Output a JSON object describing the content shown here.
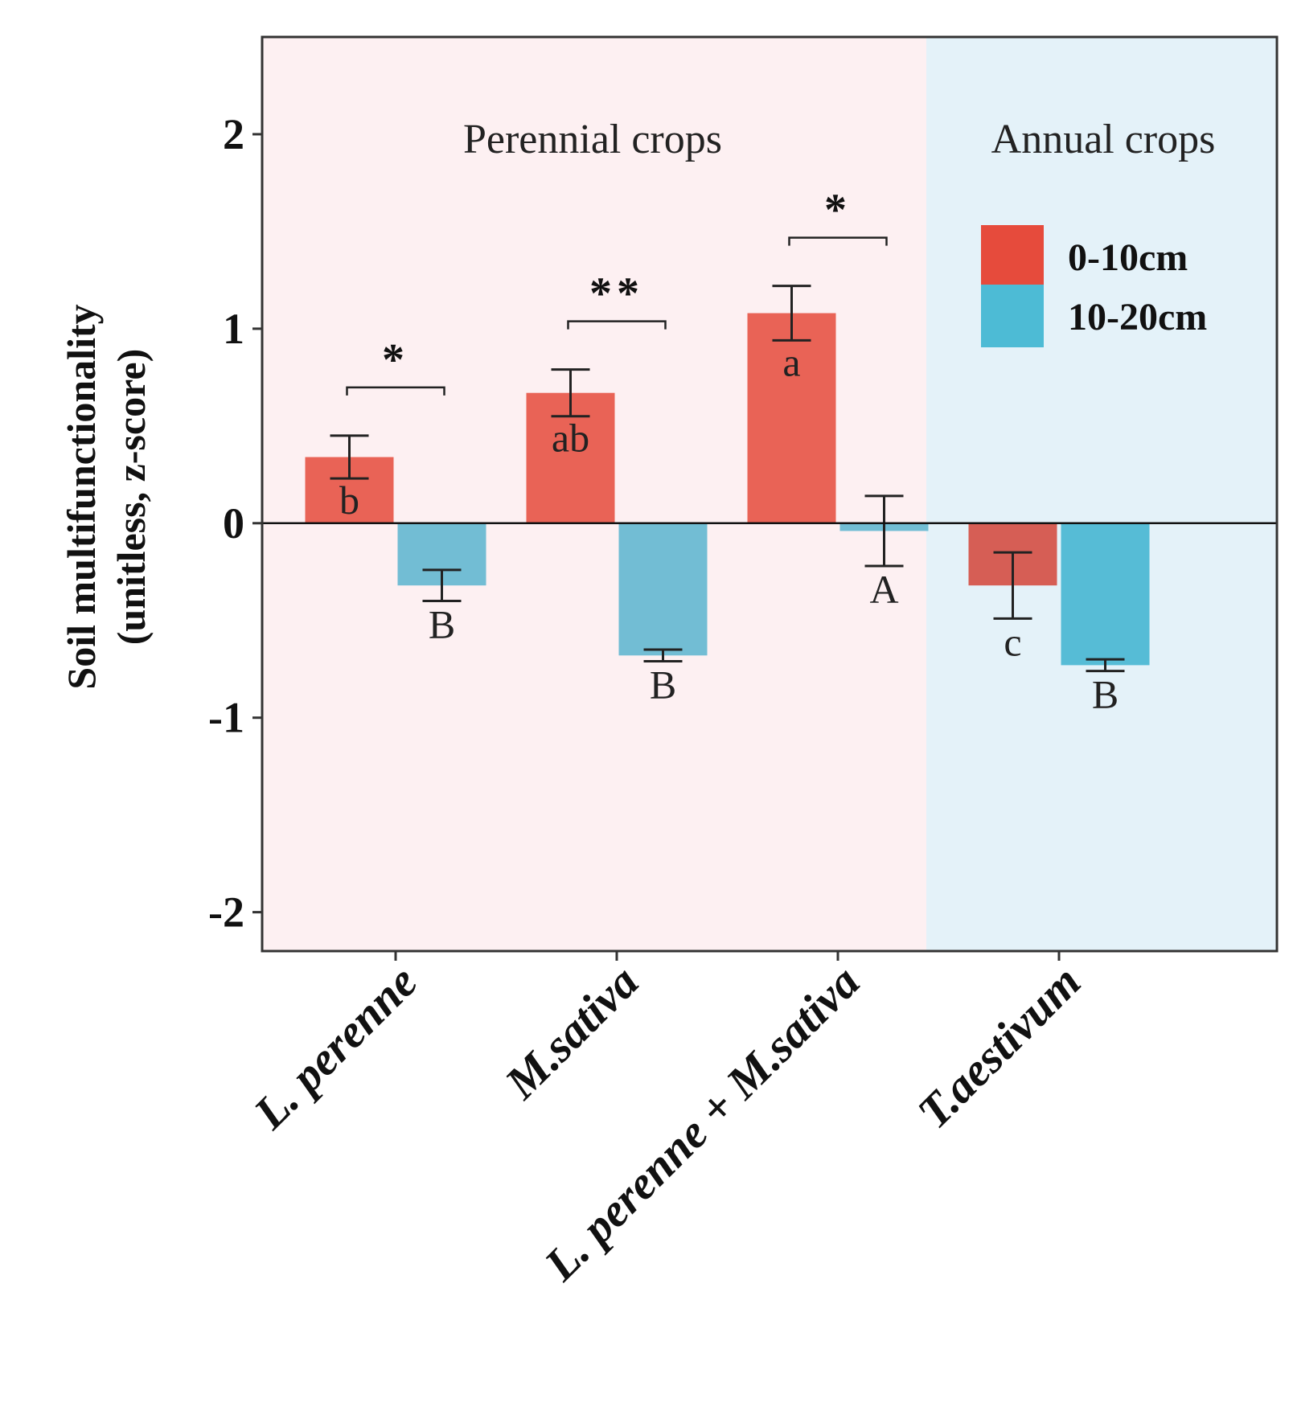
{
  "chart_data": {
    "type": "bar",
    "ylabel_line1": "Soil multifunctionality",
    "ylabel_line2": "(unitless, z-score)",
    "ylim": [
      -2.2,
      2.5
    ],
    "yticks": [
      2,
      1,
      0,
      -1,
      -2
    ],
    "categories": [
      "L. perenne",
      "M.sativa",
      "L. perenne + M.sativa",
      "T.aestivum"
    ],
    "series": [
      {
        "name": "0-10cm",
        "color": "#e64b3c",
        "values": [
          0.34,
          0.67,
          1.08,
          -0.32
        ],
        "errors": [
          0.11,
          0.12,
          0.14,
          0.17
        ],
        "letters": [
          "b",
          "ab",
          "a",
          "c"
        ]
      },
      {
        "name": "10-20cm",
        "color": "#4dbbd5",
        "values": [
          -0.32,
          -0.68,
          -0.04,
          -0.73
        ],
        "errors": [
          0.08,
          0.03,
          0.18,
          0.03
        ],
        "letters": [
          "B",
          "B",
          "A",
          "B"
        ]
      }
    ],
    "significance": [
      {
        "category": "L. perenne",
        "label": "*"
      },
      {
        "category": "M.sativa",
        "label": "**"
      },
      {
        "category": "L. perenne + M.sativa",
        "label": "*"
      }
    ],
    "regions": [
      {
        "label": "Perennial crops",
        "categories": [
          "L. perenne",
          "M.sativa",
          "L. perenne + M.sativa"
        ],
        "color": "#fdf0f2"
      },
      {
        "label": "Annual crops",
        "categories": [
          "T.aestivum"
        ],
        "color": "#e4f2f9"
      }
    ],
    "legend_position": "top-right"
  }
}
